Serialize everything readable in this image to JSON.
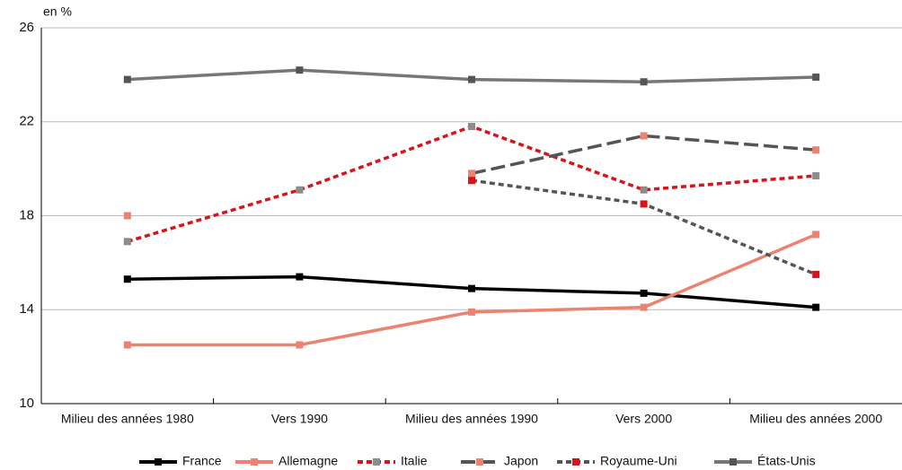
{
  "chart_data": {
    "type": "line",
    "y_label": "en %",
    "categories": [
      "Milieu des années 1980",
      "Vers 1990",
      "Milieu des années 1990",
      "Vers 2000",
      "Milieu des années 2000"
    ],
    "ylim": [
      10,
      26
    ],
    "yticks": [
      10,
      14,
      18,
      22,
      26
    ],
    "grid": true,
    "legend": "bottom",
    "series": [
      {
        "name": "France",
        "color": "#000000",
        "marker_color": "#000000",
        "dash": "solid",
        "values": [
          15.3,
          15.4,
          14.9,
          14.7,
          14.1
        ]
      },
      {
        "name": "Allemagne",
        "color": "#ec8370",
        "marker_color": "#ec8370",
        "dash": "solid",
        "values": [
          12.5,
          12.5,
          13.9,
          14.1,
          17.2
        ]
      },
      {
        "name": "Italie",
        "color": "#d7141a",
        "marker_color": "#8c8c8c",
        "dash": "dotted",
        "values": [
          16.9,
          19.1,
          21.8,
          19.1,
          19.7
        ]
      },
      {
        "name": "Japon",
        "color": "#555555",
        "marker_color": "#ec8370",
        "dash": "dashed",
        "values": [
          18.0,
          null,
          19.8,
          21.4,
          20.8
        ]
      },
      {
        "name": "Royaume-Uni",
        "color": "#555555",
        "marker_color": "#d7141a",
        "dash": "dotted",
        "values": [
          null,
          null,
          19.5,
          18.5,
          15.5
        ]
      },
      {
        "name": "États-Unis",
        "color": "#777777",
        "marker_color": "#555555",
        "dash": "solid",
        "values": [
          23.8,
          24.2,
          23.8,
          23.7,
          23.9
        ]
      }
    ]
  }
}
